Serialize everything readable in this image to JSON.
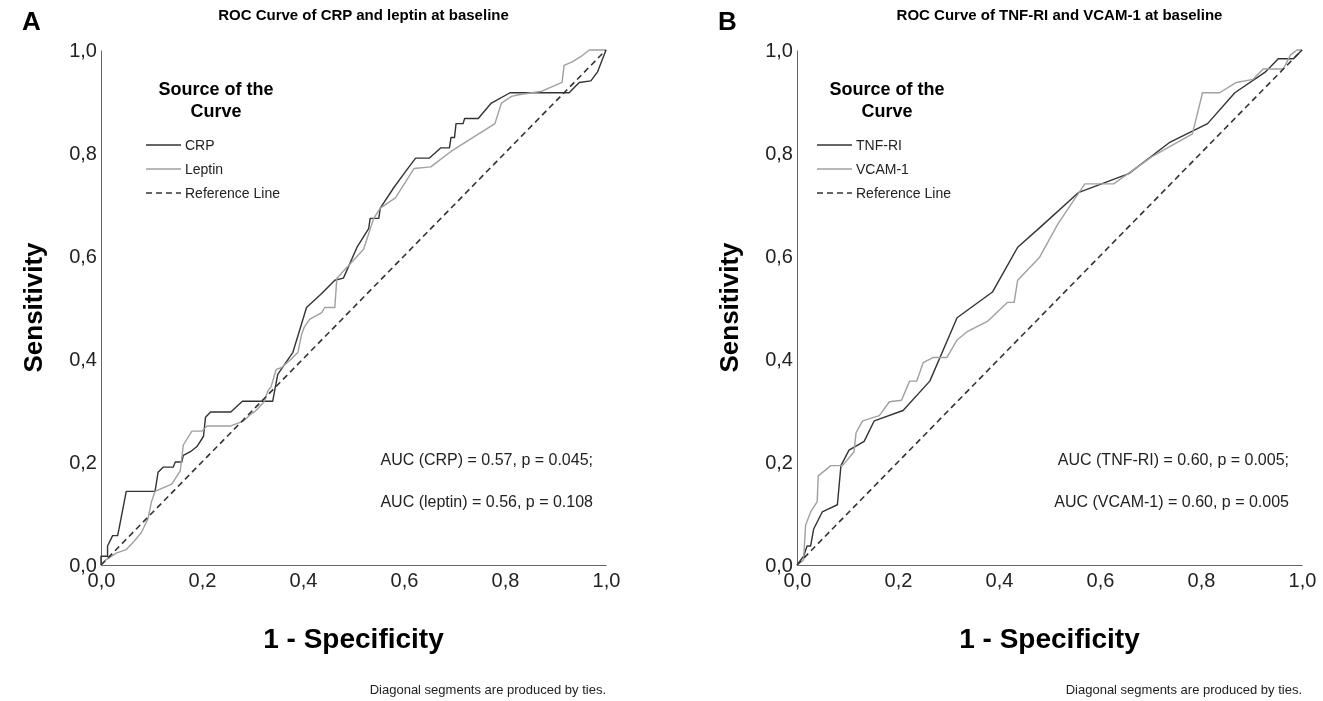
{
  "chart_data": [
    {
      "type": "line",
      "title": "ROC Curve of CRP and leptin at baseline",
      "xlabel": "1 - Specificity",
      "ylabel": "Sensitivity",
      "legend_title": "Source of the Curve",
      "legend": "top left",
      "grid": false,
      "line_style": "solid",
      "marker": "none",
      "xlim": [
        0,
        1
      ],
      "ylim": [
        0,
        1
      ],
      "xticks": [
        {
          "value": 0,
          "label": "0,0"
        },
        {
          "value": 0.2,
          "label": "0,2"
        },
        {
          "value": 0.4,
          "label": "0,4"
        },
        {
          "value": 0.6,
          "label": "0,6"
        },
        {
          "value": 0.8,
          "label": "0,8"
        },
        {
          "value": 1,
          "label": "1,0"
        }
      ],
      "yticks": [
        {
          "value": 0,
          "label": "0,0"
        },
        {
          "value": 0.2,
          "label": "0,2"
        },
        {
          "value": 0.4,
          "label": "0,4"
        },
        {
          "value": 0.6,
          "label": "0,6"
        },
        {
          "value": 0.8,
          "label": "0,8"
        },
        {
          "value": 1,
          "label": "1,0"
        }
      ],
      "annotations": [
        "A",
        "AUC (CRP) = 0.57, p = 0.045;",
        "AUC (leptin) = 0.56, p = 0.108",
        "Diagonal segments are produced by ties."
      ],
      "series": [
        {
          "name": "CRP",
          "color": "#333333",
          "x": [
            0,
            0,
            0.013,
            0.013,
            0.023,
            0.033,
            0.037,
            0.05,
            0.107,
            0.113,
            0.123,
            0.143,
            0.147,
            0.16,
            0.163,
            0.177,
            0.19,
            0.203,
            0.207,
            0.217,
            0.257,
            0.28,
            0.34,
            0.35,
            0.38,
            0.407,
            0.437,
            0.463,
            0.48,
            0.507,
            0.53,
            0.533,
            0.55,
            0.553,
            0.58,
            0.6,
            0.623,
            0.65,
            0.673,
            0.69,
            0.693,
            0.7,
            0.703,
            0.717,
            0.72,
            0.747,
            0.773,
            0.81,
            0.927,
            0.947,
            0.97,
            0.983,
            1
          ],
          "values": [
            0,
            0.017,
            0.017,
            0.037,
            0.057,
            0.057,
            0.077,
            0.143,
            0.143,
            0.18,
            0.19,
            0.19,
            0.2,
            0.2,
            0.213,
            0.22,
            0.23,
            0.25,
            0.287,
            0.297,
            0.297,
            0.318,
            0.318,
            0.37,
            0.413,
            0.5,
            0.527,
            0.553,
            0.557,
            0.617,
            0.653,
            0.673,
            0.673,
            0.693,
            0.733,
            0.76,
            0.79,
            0.79,
            0.81,
            0.81,
            0.83,
            0.83,
            0.857,
            0.857,
            0.867,
            0.867,
            0.897,
            0.917,
            0.917,
            0.937,
            0.94,
            0.957,
            1
          ]
        },
        {
          "name": "Leptin",
          "color": "#a0a0a0",
          "x": [
            0,
            0.01,
            0.03,
            0.05,
            0.063,
            0.08,
            0.093,
            0.1,
            0.107,
            0.14,
            0.157,
            0.163,
            0.18,
            0.2,
            0.21,
            0.257,
            0.283,
            0.297,
            0.307,
            0.323,
            0.33,
            0.337,
            0.347,
            0.357,
            0.377,
            0.39,
            0.397,
            0.403,
            0.413,
            0.437,
            0.443,
            0.463,
            0.467,
            0.473,
            0.52,
            0.54,
            0.553,
            0.583,
            0.62,
            0.653,
            0.693,
            0.78,
            0.793,
            0.813,
            0.827,
            0.873,
            0.913,
            0.917,
            0.933,
            0.95,
            0.967,
            1
          ],
          "values": [
            0,
            0.01,
            0.023,
            0.03,
            0.043,
            0.063,
            0.09,
            0.123,
            0.143,
            0.157,
            0.183,
            0.233,
            0.26,
            0.26,
            0.27,
            0.27,
            0.28,
            0.293,
            0.3,
            0.317,
            0.337,
            0.347,
            0.38,
            0.383,
            0.4,
            0.413,
            0.447,
            0.463,
            0.477,
            0.49,
            0.5,
            0.5,
            0.557,
            0.563,
            0.613,
            0.673,
            0.693,
            0.713,
            0.77,
            0.773,
            0.803,
            0.857,
            0.897,
            0.91,
            0.913,
            0.92,
            0.937,
            0.97,
            0.977,
            0.987,
            1,
            1
          ]
        },
        {
          "name": "Reference Line",
          "color": "#333333",
          "line_style": "dashed",
          "x": [
            0,
            1
          ],
          "values": [
            0,
            1
          ]
        }
      ]
    },
    {
      "type": "line",
      "title": "ROC Curve of TNF-RI and VCAM-1 at baseline",
      "xlabel": "1 - Specificity",
      "ylabel": "Sensitivity",
      "legend_title": "Source of the Curve",
      "legend": "top left",
      "grid": false,
      "line_style": "solid",
      "marker": "none",
      "xlim": [
        0,
        1
      ],
      "ylim": [
        0,
        1
      ],
      "xticks": [
        {
          "value": 0,
          "label": "0,0"
        },
        {
          "value": 0.2,
          "label": "0,2"
        },
        {
          "value": 0.4,
          "label": "0,4"
        },
        {
          "value": 0.6,
          "label": "0,6"
        },
        {
          "value": 0.8,
          "label": "0,8"
        },
        {
          "value": 1,
          "label": "1,0"
        }
      ],
      "yticks": [
        {
          "value": 0,
          "label": "0,0"
        },
        {
          "value": 0.2,
          "label": "0,2"
        },
        {
          "value": 0.4,
          "label": "0,4"
        },
        {
          "value": 0.6,
          "label": "0,6"
        },
        {
          "value": 0.8,
          "label": "0,8"
        },
        {
          "value": 1,
          "label": "1,0"
        }
      ],
      "annotations": [
        "B",
        "AUC (TNF-RI) = 0.60, p = 0.005;",
        "AUC (VCAM-1) = 0.60, p = 0.005",
        "Diagonal segments are produced by ties."
      ],
      "series": [
        {
          "name": "TNF-RI",
          "color": "#333333",
          "x": [
            0,
            0.013,
            0.02,
            0.027,
            0.033,
            0.05,
            0.08,
            0.087,
            0.103,
            0.133,
            0.153,
            0.21,
            0.263,
            0.317,
            0.387,
            0.437,
            0.483,
            0.557,
            0.657,
            0.737,
            0.813,
            0.867,
            0.927,
            0.953,
            0.983,
            1
          ],
          "values": [
            0,
            0.017,
            0.037,
            0.037,
            0.07,
            0.103,
            0.117,
            0.193,
            0.223,
            0.24,
            0.28,
            0.3,
            0.357,
            0.48,
            0.53,
            0.617,
            0.657,
            0.723,
            0.76,
            0.82,
            0.857,
            0.917,
            0.957,
            0.983,
            0.983,
            1
          ]
        },
        {
          "name": "VCAM-1",
          "color": "#a0a0a0",
          "x": [
            0,
            0.013,
            0.017,
            0.027,
            0.04,
            0.042,
            0.067,
            0.09,
            0.113,
            0.117,
            0.13,
            0.163,
            0.183,
            0.207,
            0.223,
            0.237,
            0.25,
            0.27,
            0.297,
            0.317,
            0.337,
            0.377,
            0.417,
            0.43,
            0.437,
            0.48,
            0.517,
            0.57,
            0.627,
            0.703,
            0.783,
            0.803,
            0.837,
            0.87,
            0.903,
            0.923,
            0.963,
            0.977,
            0.99,
            1
          ],
          "values": [
            0,
            0.01,
            0.077,
            0.103,
            0.123,
            0.173,
            0.193,
            0.193,
            0.22,
            0.257,
            0.28,
            0.29,
            0.317,
            0.32,
            0.357,
            0.357,
            0.393,
            0.403,
            0.403,
            0.437,
            0.453,
            0.473,
            0.51,
            0.51,
            0.553,
            0.597,
            0.663,
            0.74,
            0.74,
            0.793,
            0.837,
            0.917,
            0.917,
            0.937,
            0.943,
            0.963,
            0.963,
            0.99,
            1,
            1
          ]
        },
        {
          "name": "Reference Line",
          "color": "#333333",
          "line_style": "dashed",
          "x": [
            0,
            1
          ],
          "values": [
            0,
            1
          ]
        }
      ]
    }
  ]
}
